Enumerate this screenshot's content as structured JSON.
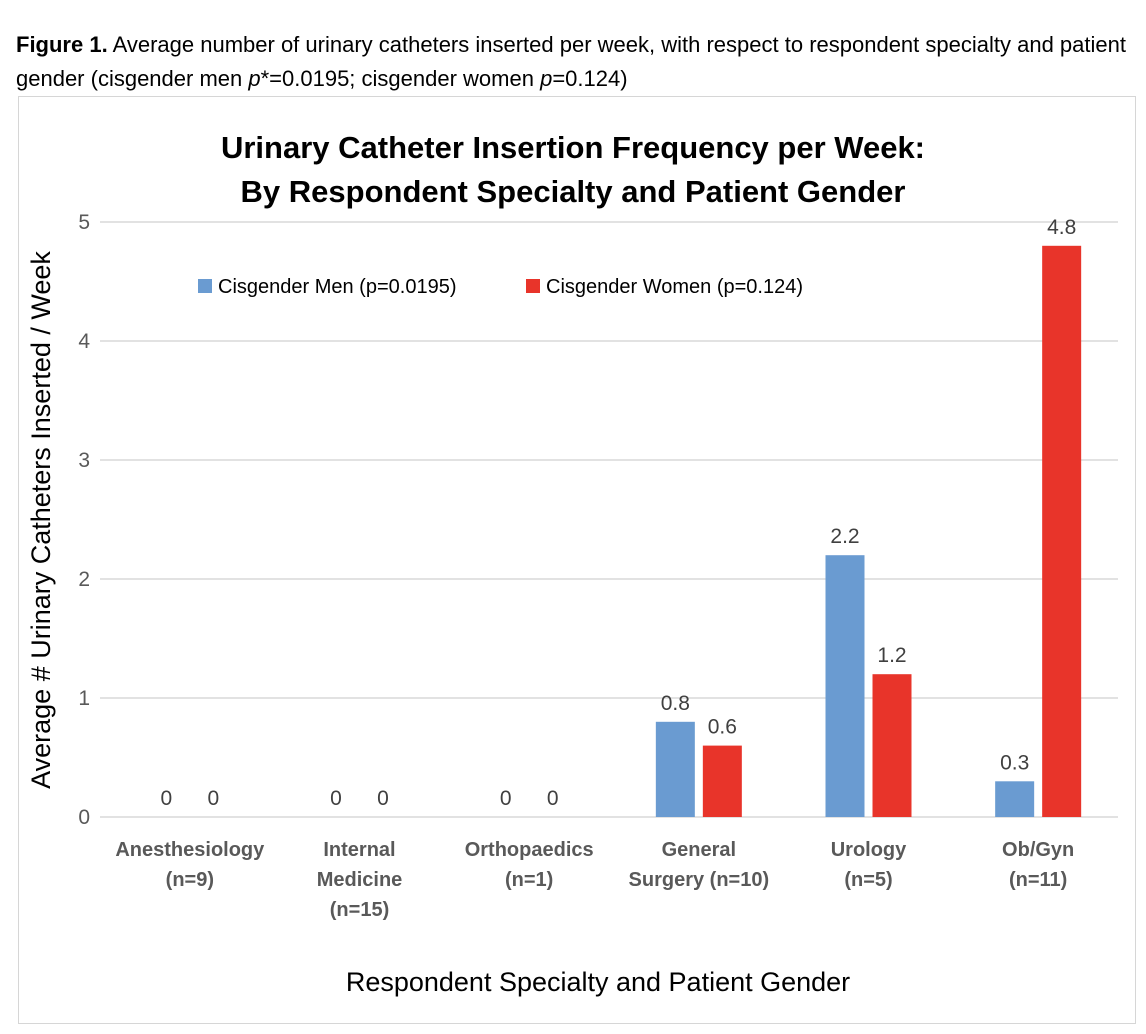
{
  "caption": {
    "label": "Figure 1.",
    "text_1": " Average number of urinary catheters inserted per week, with respect to respondent specialty and patient gender (cisgender men ",
    "p_symbol": "p",
    "text_2": "*=0.0195; cisgender women ",
    "p_symbol_2": "p",
    "text_3": "=0.124)"
  },
  "chart_data": {
    "type": "bar",
    "title_lines": [
      "Urinary Catheter Insertion Frequency per Week:",
      "By Respondent Specialty and Patient Gender"
    ],
    "xlabel": "Respondent Specialty and Patient Gender",
    "ylabel": "Average # Urinary Catheters Inserted / Week",
    "ylim": [
      0,
      5
    ],
    "yticks": [
      0,
      1,
      2,
      3,
      4,
      5
    ],
    "grid": true,
    "legend_position": "top",
    "categories": [
      [
        "Anesthesiology",
        "(n=9)"
      ],
      [
        "Internal",
        "Medicine",
        "(n=15)"
      ],
      [
        "Orthopaedics",
        "(n=1)"
      ],
      [
        "General",
        "Surgery (n=10)"
      ],
      [
        "Urology",
        "(n=5)"
      ],
      [
        "Ob/Gyn",
        "(n=11)"
      ]
    ],
    "series": [
      {
        "name": "Cisgender Men (p=0.0195)",
        "color": "#6a9bd1",
        "values": [
          0,
          0,
          0,
          0.8,
          2.2,
          0.3
        ]
      },
      {
        "name": "Cisgender Women (p=0.124)",
        "color": "#e8342a",
        "values": [
          0,
          0,
          0,
          0.6,
          1.2,
          4.8
        ]
      }
    ]
  }
}
